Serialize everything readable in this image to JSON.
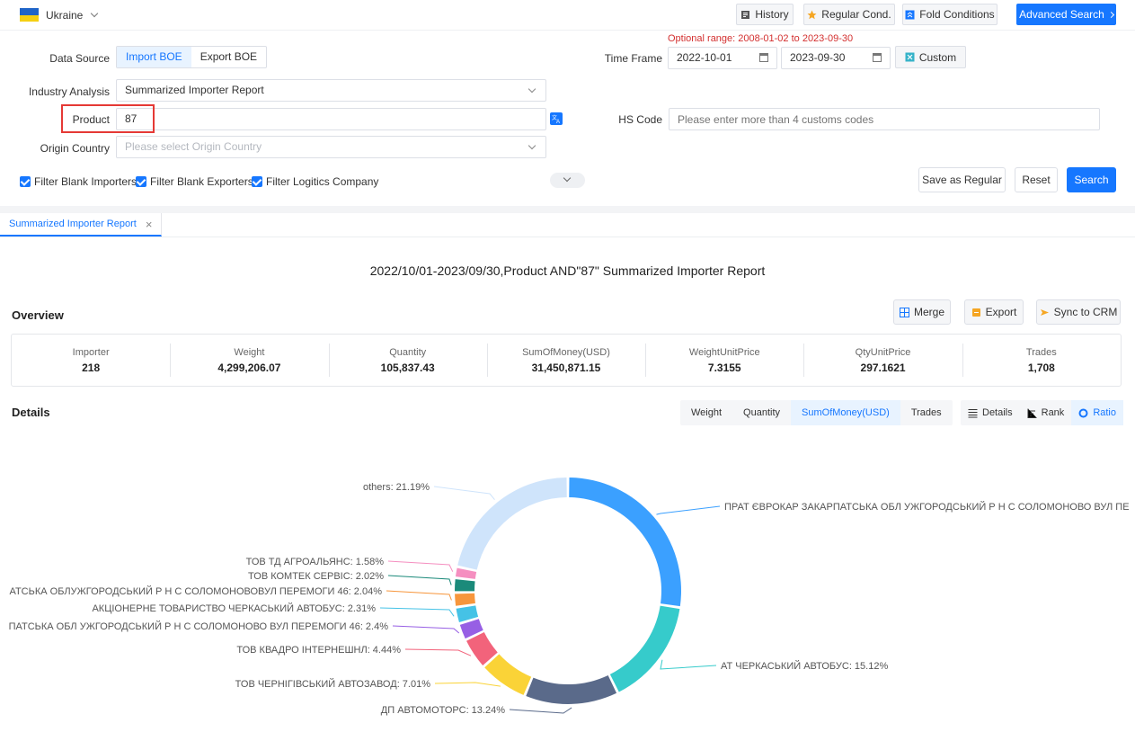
{
  "topbar": {
    "country": "Ukraine",
    "history": "History",
    "regular_cond": "Regular Cond.",
    "fold_conditions": "Fold Conditions",
    "advanced_search": "Advanced Search"
  },
  "form": {
    "data_source_label": "Data Source",
    "import_boe": "Import BOE",
    "export_boe": "Export BOE",
    "optional_range": "Optional range: 2008-01-02 to 2023-09-30",
    "time_frame_label": "Time Frame",
    "date_from": "2022-10-01",
    "date_to": "2023-09-30",
    "custom": "Custom",
    "industry_label": "Industry Analysis",
    "industry_value": "Summarized Importer Report",
    "product_label": "Product",
    "product_value": "87",
    "hs_code_label": "HS Code",
    "hs_code_placeholder": "Please enter more than 4 customs codes",
    "origin_label": "Origin Country",
    "origin_placeholder": "Please select Origin Country",
    "filter_importers": "Filter Blank Importers",
    "filter_exporters": "Filter Blank Exporters",
    "filter_logistics": "Filter Logitics Company",
    "save_regular": "Save as Regular",
    "reset": "Reset",
    "search": "Search"
  },
  "tab": {
    "label": "Summarized Importer Report",
    "close": "×"
  },
  "report": {
    "title": "2022/10/01-2023/09/30,Product AND\"87\" Summarized Importer Report",
    "overview_title": "Overview",
    "merge": "Merge",
    "export": "Export",
    "sync_crm": "Sync to CRM",
    "stats": [
      {
        "key": "Importer",
        "value": "218"
      },
      {
        "key": "Weight",
        "value": "4,299,206.07"
      },
      {
        "key": "Quantity",
        "value": "105,837.43"
      },
      {
        "key": "SumOfMoney(USD)",
        "value": "31,450,871.15"
      },
      {
        "key": "WeightUnitPrice",
        "value": "7.3155"
      },
      {
        "key": "QtyUnitPrice",
        "value": "297.1621"
      },
      {
        "key": "Trades",
        "value": "1,708"
      }
    ],
    "details_title": "Details",
    "metrics": [
      "Weight",
      "Quantity",
      "SumOfMoney(USD)",
      "Trades"
    ],
    "views": [
      "Details",
      "Rank",
      "Ratio"
    ]
  },
  "colors": {
    "accent": "#1677ff",
    "range_red": "#d32f2f"
  },
  "chart_data": {
    "type": "pie",
    "variant": "donut",
    "slices": [
      {
        "label": "ПРАТ ЄВРОКАР ЗАКАРПАТСЬКА ОБЛ УЖГОРОДСЬКИЙ Р Н С СОЛОМОНОВО ВУЛ ПЕ",
        "value": 26.87,
        "color": "#3ba0ff"
      },
      {
        "label": "АТ ЧЕРКАСЬКИЙ АВТОБУС: 15.12%",
        "value": 15.12,
        "color": "#36cbcb"
      },
      {
        "label": "ДП АВТОМОТОРС: 13.24%",
        "value": 13.24,
        "color": "#5a6a8a"
      },
      {
        "label": "ТОВ ЧЕРНІГІВСЬКИЙ АВТОЗАВОД: 7.01%",
        "value": 7.01,
        "color": "#fad337"
      },
      {
        "label": "ТОВ КВАДРО ІНТЕРНЕШНЛ: 4.44%",
        "value": 4.44,
        "color": "#f2637b"
      },
      {
        "label": "ПАТСЬКА ОБЛ УЖГОРОДСЬКИЙ Р Н С СОЛОМОНОВО ВУЛ ПЕРЕМОГИ 46: 2.4%",
        "value": 2.4,
        "color": "#975fe4"
      },
      {
        "label": "АКЦІОНЕРНЕ ТОВАРИСТВО ЧЕРКАСЬКИЙ АВТОБУС: 2.31%",
        "value": 2.31,
        "color": "#45c2e6"
      },
      {
        "label": "АТСЬКА ОБЛУЖГОРОДСЬКИЙ Р Н С СОЛОМОНОВОВУЛ ПЕРЕМОГИ 46: 2.04%",
        "value": 2.04,
        "color": "#f7963c"
      },
      {
        "label": "ТОВ КОМТЕК СЕРВІС: 2.02%",
        "value": 2.02,
        "color": "#1b8a7a"
      },
      {
        "label": "ТОВ ТД АГРОАЛЬЯНС: 1.58%",
        "value": 1.58,
        "color": "#f58fc0"
      },
      {
        "label": "others: 21.19%",
        "value": 21.19,
        "color": "#cfe4fb"
      }
    ]
  }
}
